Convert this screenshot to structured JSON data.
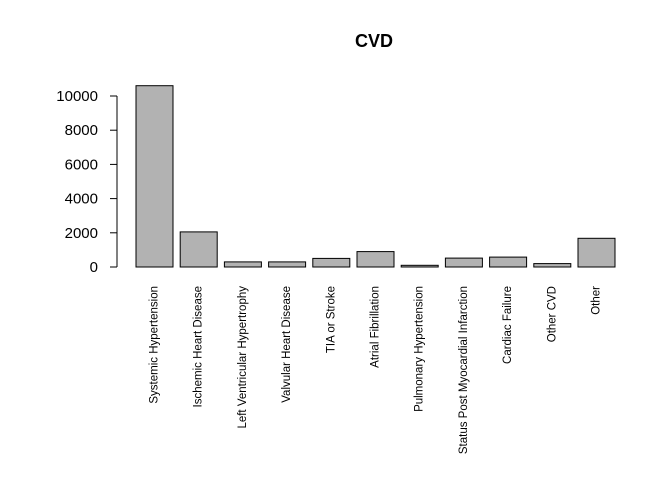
{
  "chart_data": {
    "type": "bar",
    "title": "CVD",
    "xlabel": "",
    "ylabel": "",
    "categories": [
      "Systemic Hypertension",
      "Ischemic Heart Disease",
      "Left Ventricular Hypertrophy",
      "Valvular Heart Disease",
      "TIA or Stroke",
      "Atrial Fibrillation",
      "Pulmonary Hypertension",
      "Status Post Myocardial Infarction",
      "Cardiac Failure",
      "Other CVD",
      "Other"
    ],
    "values": [
      10600,
      2050,
      300,
      300,
      500,
      900,
      100,
      520,
      580,
      200,
      1680
    ],
    "yticks": [
      "0",
      "2000",
      "4000",
      "6000",
      "8000",
      "10000"
    ],
    "ylim": [
      0,
      10600
    ],
    "grid": false,
    "bar_color": "#b2b2b2",
    "border_color": "#000000"
  }
}
